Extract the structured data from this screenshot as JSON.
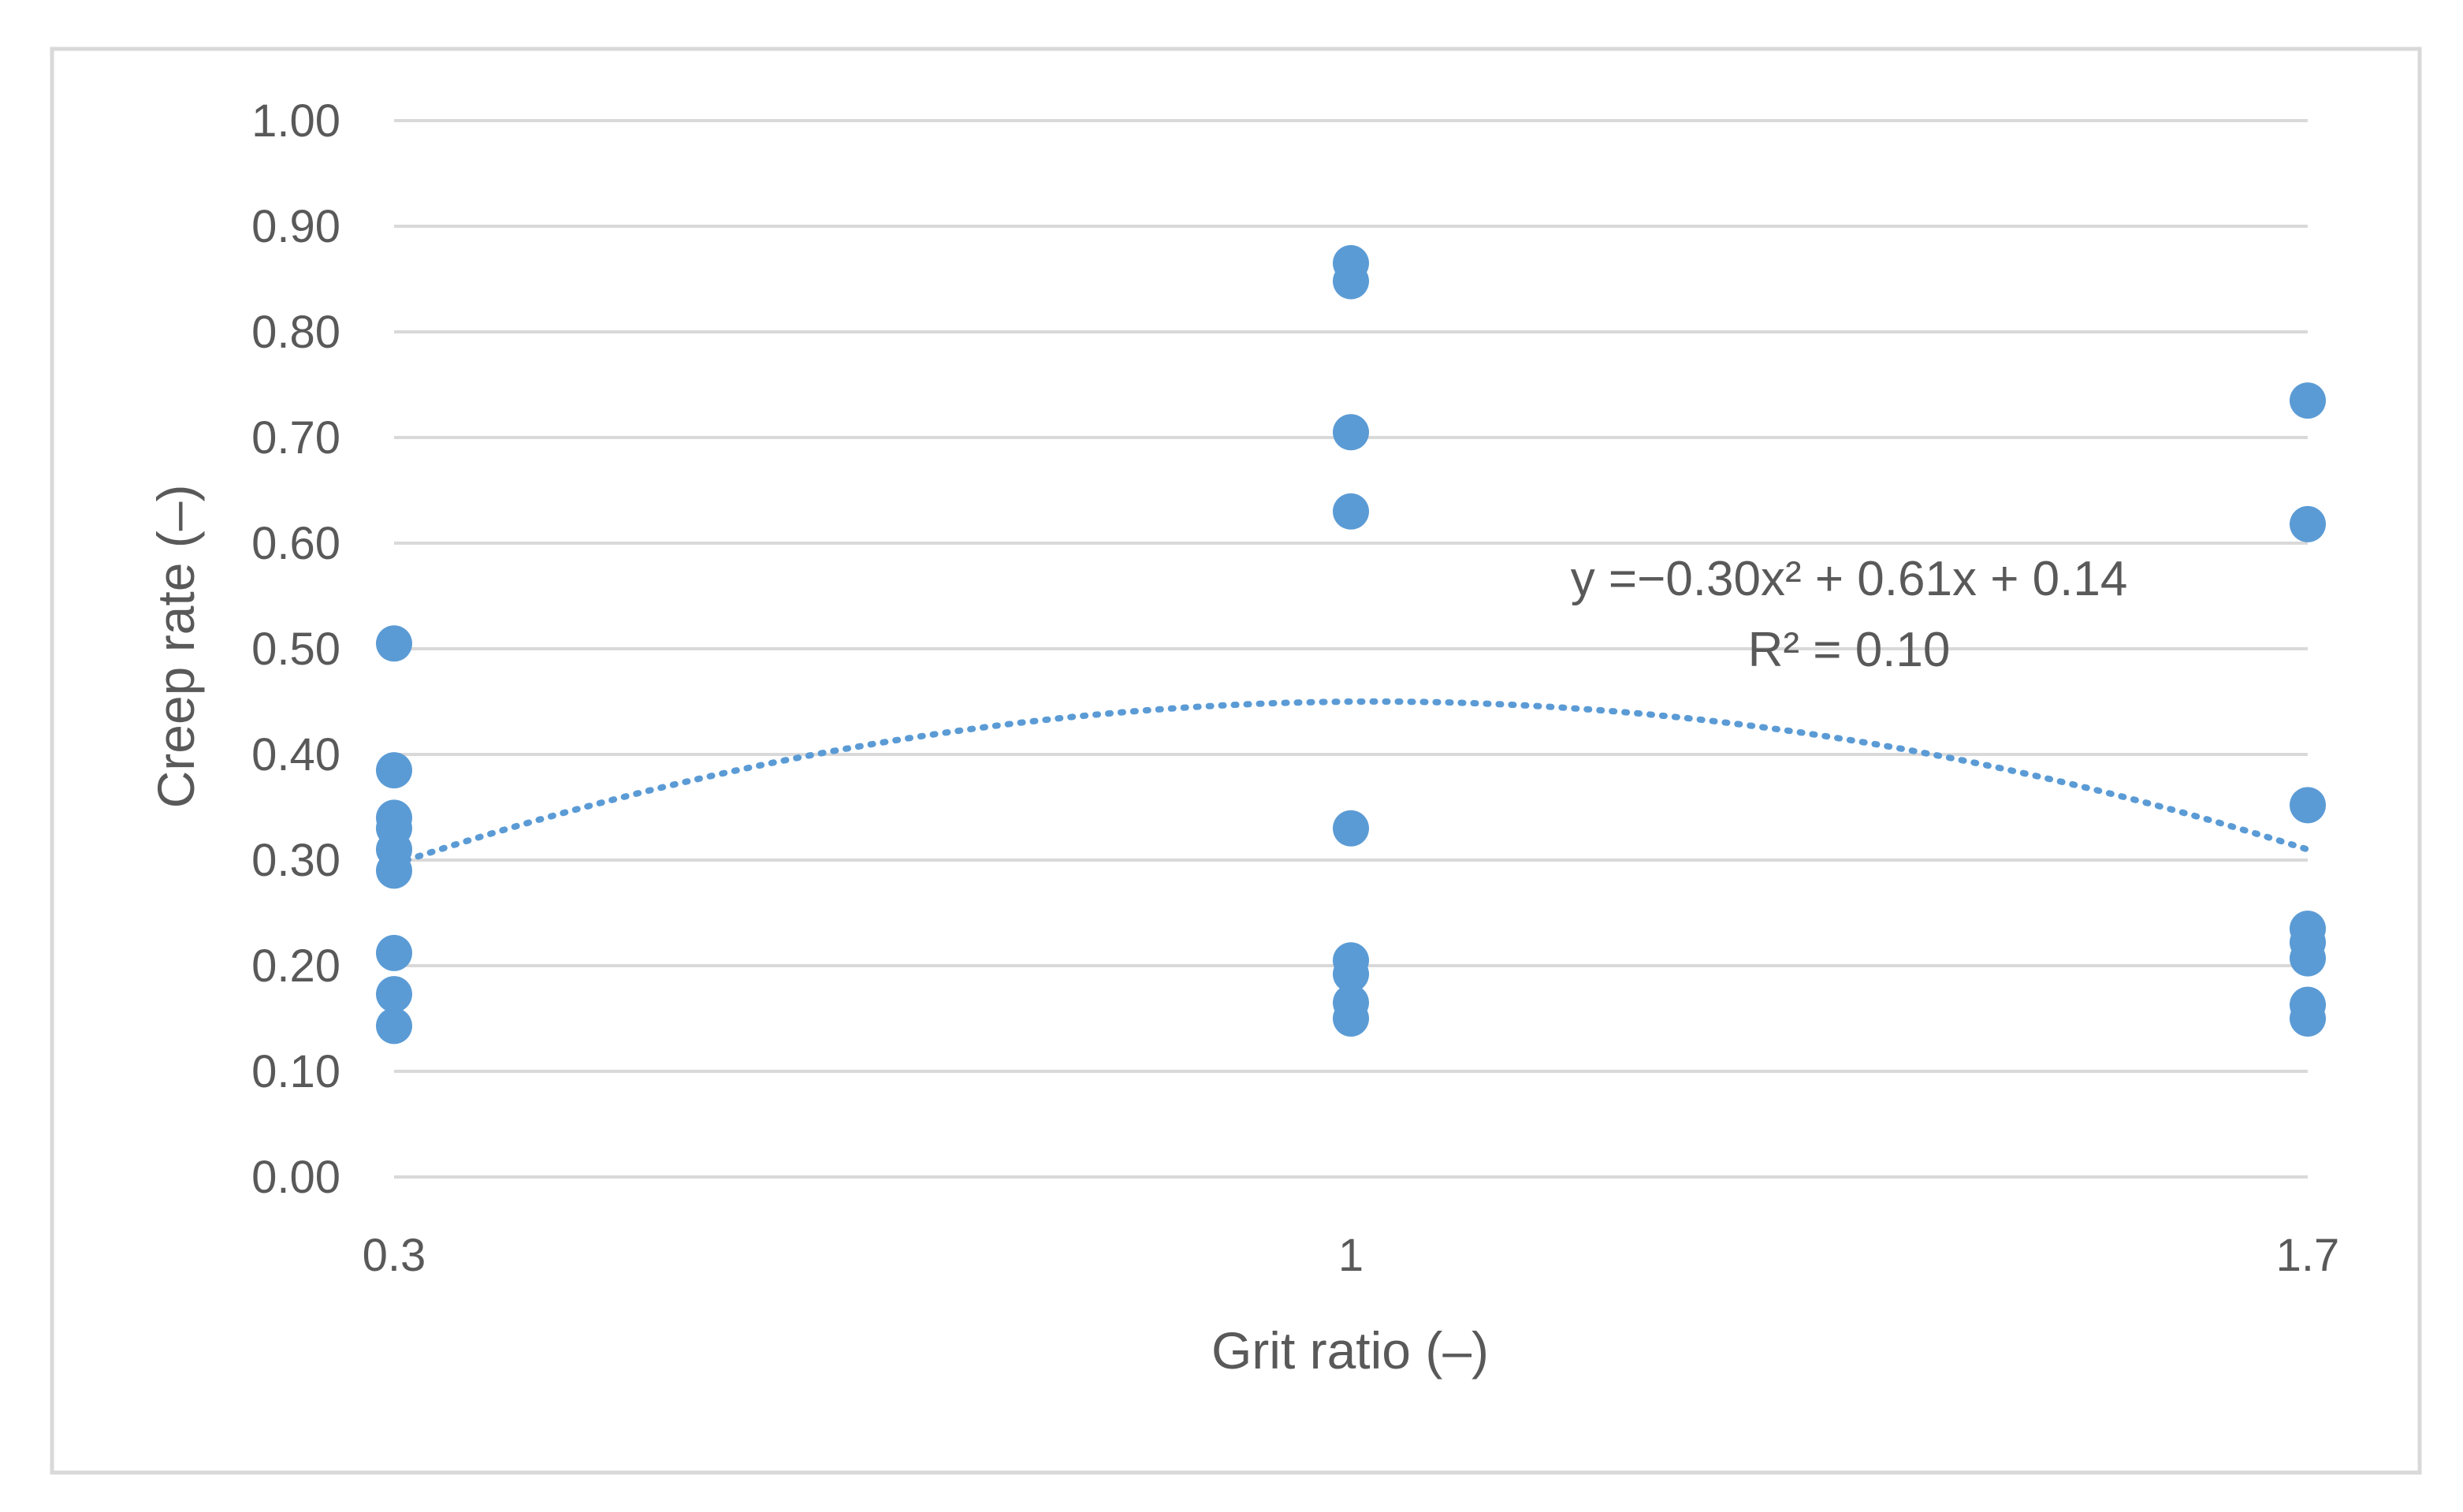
{
  "chart_data": {
    "type": "scatter",
    "title": "",
    "xlabel": "Grit ratio (–)",
    "ylabel": "Creep rate (–)",
    "xlim": [
      0.3,
      1.7
    ],
    "ylim": [
      0.0,
      1.0
    ],
    "x_ticks": [
      {
        "value": 0.3,
        "label": "0.3"
      },
      {
        "value": 1.0,
        "label": "1"
      },
      {
        "value": 1.7,
        "label": "1.7"
      }
    ],
    "y_ticks": [
      {
        "value": 0.0,
        "label": "0.00"
      },
      {
        "value": 0.1,
        "label": "0.10"
      },
      {
        "value": 0.2,
        "label": "0.20"
      },
      {
        "value": 0.3,
        "label": "0.30"
      },
      {
        "value": 0.4,
        "label": "0.40"
      },
      {
        "value": 0.5,
        "label": "0.50"
      },
      {
        "value": 0.6,
        "label": "0.60"
      },
      {
        "value": 0.7,
        "label": "0.70"
      },
      {
        "value": 0.8,
        "label": "0.80"
      },
      {
        "value": 0.9,
        "label": "0.90"
      },
      {
        "value": 1.0,
        "label": "1.00"
      }
    ],
    "grid": {
      "horizontal": true,
      "vertical": false
    },
    "legend": "none",
    "series": [
      {
        "color": "#5b9bd5",
        "points": [
          {
            "x": 0.3,
            "y": 0.505
          },
          {
            "x": 0.3,
            "y": 0.385
          },
          {
            "x": 0.3,
            "y": 0.34
          },
          {
            "x": 0.3,
            "y": 0.33
          },
          {
            "x": 0.3,
            "y": 0.31
          },
          {
            "x": 0.3,
            "y": 0.29
          },
          {
            "x": 0.3,
            "y": 0.212
          },
          {
            "x": 0.3,
            "y": 0.173
          },
          {
            "x": 0.3,
            "y": 0.143
          },
          {
            "x": 1.0,
            "y": 0.865
          },
          {
            "x": 1.0,
            "y": 0.848
          },
          {
            "x": 1.0,
            "y": 0.705
          },
          {
            "x": 1.0,
            "y": 0.63
          },
          {
            "x": 1.0,
            "y": 0.33
          },
          {
            "x": 1.0,
            "y": 0.205
          },
          {
            "x": 1.0,
            "y": 0.192
          },
          {
            "x": 1.0,
            "y": 0.165
          },
          {
            "x": 1.0,
            "y": 0.15
          },
          {
            "x": 1.7,
            "y": 0.735
          },
          {
            "x": 1.7,
            "y": 0.618
          },
          {
            "x": 1.7,
            "y": 0.352
          },
          {
            "x": 1.7,
            "y": 0.235
          },
          {
            "x": 1.7,
            "y": 0.222
          },
          {
            "x": 1.7,
            "y": 0.207
          },
          {
            "x": 1.7,
            "y": 0.163
          },
          {
            "x": 1.7,
            "y": 0.15
          }
        ]
      }
    ],
    "trendline": {
      "type": "polynomial",
      "order": 2,
      "style": "dotted",
      "color": "#5b9bd5",
      "coefficients": {
        "a": -0.3,
        "b": 0.61,
        "c": 0.14
      },
      "equation_label": "y =−0.30x² + 0.61x + 0.14",
      "r2_label": "R² = 0.10"
    }
  }
}
